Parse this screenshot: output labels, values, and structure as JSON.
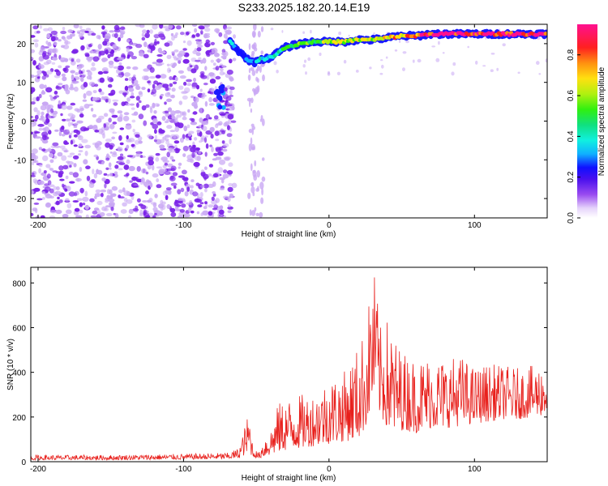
{
  "title": "S233.2025.182.20.14.E19",
  "colors": {
    "snr_line": "#e8201c",
    "scatter_purple": "#7b22e8",
    "scatter_light": "#c9a8f4",
    "ridge_blue": "#1a1aff",
    "ridge_green": "#30e030",
    "ridge_red": "#ff1030",
    "axis": "#000000"
  },
  "chart_data": [
    {
      "type": "heatmap",
      "title": "S233.2025.182.20.14.E19",
      "xlabel": "Height of straight line (km)",
      "ylabel": "Frequency (Hz)",
      "xlim": [
        -205,
        150
      ],
      "ylim": [
        -25,
        25
      ],
      "xticks": [
        -200,
        -100,
        0,
        100
      ],
      "yticks": [
        -20,
        -10,
        0,
        10,
        20
      ],
      "colorbar": {
        "label": "Normalized spectral amplitude",
        "range": [
          0,
          0.95
        ],
        "ticks": [
          0.0,
          0.2,
          0.4,
          0.6,
          0.8
        ],
        "colormap": "rainbow"
      },
      "features": {
        "noise_region_x": [
          -205,
          -70
        ],
        "gap_region_x": [
          -45,
          150
        ],
        "ridge": {
          "x": [
            -68,
            -62,
            -56,
            -52,
            -48,
            -44,
            -40,
            -36,
            -30,
            -20,
            -10,
            0,
            10,
            20,
            30,
            40,
            50,
            60,
            70,
            80,
            90,
            100,
            110,
            120,
            130,
            140,
            150
          ],
          "y": [
            20.5,
            18,
            16,
            15,
            16,
            16,
            16.5,
            17.5,
            19,
            20,
            20.5,
            20.5,
            20.5,
            21,
            21,
            21.5,
            22,
            22,
            22.5,
            22.5,
            22.5,
            22.5,
            22.5,
            22.5,
            22.5,
            22.5,
            22.5
          ],
          "amplitude": [
            0.35,
            0.2,
            0.3,
            0.25,
            0.35,
            0.4,
            0.35,
            0.4,
            0.45,
            0.5,
            0.55,
            0.55,
            0.6,
            0.6,
            0.6,
            0.65,
            0.7,
            0.8,
            0.85,
            0.9,
            0.9,
            0.85,
            0.9,
            0.85,
            0.9,
            0.9,
            0.9
          ]
        },
        "low_freq_blob": {
          "x": [
            -78,
            -72
          ],
          "y": [
            3,
            9
          ],
          "amplitude": 0.3
        }
      }
    },
    {
      "type": "line",
      "xlabel": "Height of straight line (km)",
      "ylabel": "SNR (10 * v/v)",
      "xlim": [
        -205,
        150
      ],
      "ylim": [
        0,
        870
      ],
      "xticks": [
        -200,
        -100,
        0,
        100
      ],
      "yticks": [
        0,
        200,
        400,
        600,
        800
      ],
      "series": [
        {
          "envelope_x": [
            -205,
            -150,
            -100,
            -70,
            -62,
            -55,
            -52,
            -48,
            -45,
            -40,
            -35,
            -30,
            -20,
            -10,
            0,
            10,
            20,
            25,
            30,
            32,
            35,
            40,
            45,
            50,
            60,
            70,
            80,
            90,
            100,
            110,
            120,
            130,
            140,
            150
          ],
          "envelope_lower": [
            8,
            8,
            10,
            12,
            15,
            40,
            20,
            15,
            20,
            30,
            40,
            50,
            60,
            70,
            80,
            90,
            100,
            150,
            250,
            300,
            200,
            150,
            120,
            140,
            130,
            150,
            150,
            160,
            170,
            180,
            190,
            190,
            200,
            210
          ],
          "envelope_upper": [
            30,
            30,
            35,
            40,
            60,
            230,
            60,
            40,
            110,
            150,
            260,
            280,
            300,
            310,
            380,
            400,
            520,
            600,
            860,
            840,
            600,
            640,
            560,
            500,
            460,
            480,
            460,
            480,
            420,
            440,
            430,
            420,
            430,
            440
          ]
        }
      ]
    }
  ]
}
